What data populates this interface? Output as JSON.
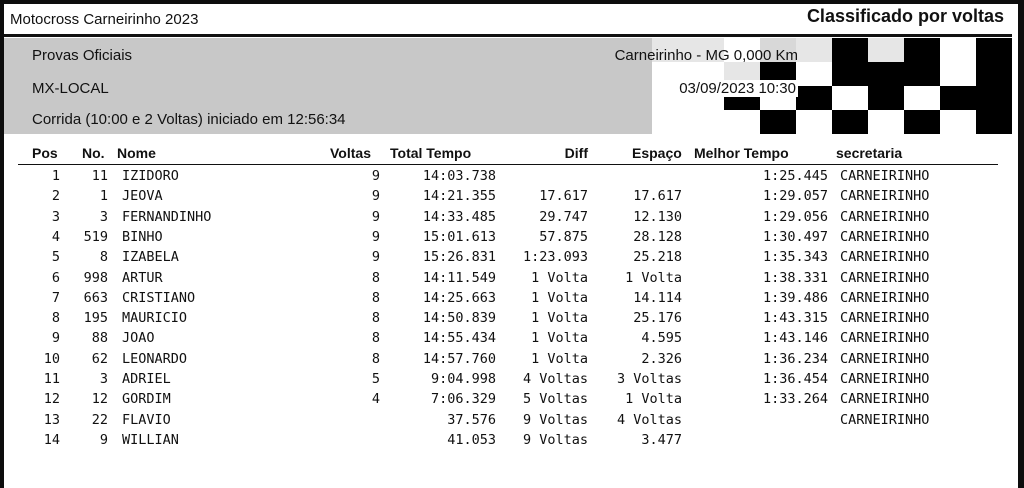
{
  "header": {
    "event_title": "Motocross Carneirinho 2023",
    "report_title": "Classificado por voltas"
  },
  "info": {
    "category": "Provas Oficiais",
    "class": "MX-LOCAL",
    "race": "Corrida (10:00 e 2 Voltas) iniciado em 12:56:34",
    "location": "Carneirinho - MG 0,000 Km",
    "datetime": "03/09/2023 10:30"
  },
  "table": {
    "columns": {
      "pos": "Pos",
      "no": "No.",
      "name": "Nome",
      "laps": "Voltas",
      "total": "Total Tempo",
      "diff": "Diff",
      "gap": "Espaço",
      "best": "Melhor Tempo",
      "team": "secretaria"
    },
    "rows": [
      {
        "pos": "1",
        "no": "11",
        "name": "IZIDORO",
        "laps": "9",
        "total": "14:03.738",
        "diff": "",
        "gap": "",
        "best": "1:25.445",
        "team": "CARNEIRINHO"
      },
      {
        "pos": "2",
        "no": "1",
        "name": "JEOVA",
        "laps": "9",
        "total": "14:21.355",
        "diff": "17.617",
        "gap": "17.617",
        "best": "1:29.057",
        "team": "CARNEIRINHO"
      },
      {
        "pos": "3",
        "no": "3",
        "name": "FERNANDINHO",
        "laps": "9",
        "total": "14:33.485",
        "diff": "29.747",
        "gap": "12.130",
        "best": "1:29.056",
        "team": "CARNEIRINHO"
      },
      {
        "pos": "4",
        "no": "519",
        "name": "BINHO",
        "laps": "9",
        "total": "15:01.613",
        "diff": "57.875",
        "gap": "28.128",
        "best": "1:30.497",
        "team": "CARNEIRINHO"
      },
      {
        "pos": "5",
        "no": "8",
        "name": "IZABELA",
        "laps": "9",
        "total": "15:26.831",
        "diff": "1:23.093",
        "gap": "25.218",
        "best": "1:35.343",
        "team": "CARNEIRINHO"
      },
      {
        "pos": "6",
        "no": "998",
        "name": "ARTUR",
        "laps": "8",
        "total": "14:11.549",
        "diff": "1 Volta",
        "gap": "1 Volta",
        "best": "1:38.331",
        "team": "CARNEIRINHO"
      },
      {
        "pos": "7",
        "no": "663",
        "name": "CRISTIANO",
        "laps": "8",
        "total": "14:25.663",
        "diff": "1 Volta",
        "gap": "14.114",
        "best": "1:39.486",
        "team": "CARNEIRINHO"
      },
      {
        "pos": "8",
        "no": "195",
        "name": "MAURICIO",
        "laps": "8",
        "total": "14:50.839",
        "diff": "1 Volta",
        "gap": "25.176",
        "best": "1:43.315",
        "team": "CARNEIRINHO"
      },
      {
        "pos": "9",
        "no": "88",
        "name": "JOAO",
        "laps": "8",
        "total": "14:55.434",
        "diff": "1 Volta",
        "gap": "4.595",
        "best": "1:43.146",
        "team": "CARNEIRINHO"
      },
      {
        "pos": "10",
        "no": "62",
        "name": "LEONARDO",
        "laps": "8",
        "total": "14:57.760",
        "diff": "1 Volta",
        "gap": "2.326",
        "best": "1:36.234",
        "team": "CARNEIRINHO"
      },
      {
        "pos": "11",
        "no": "3",
        "name": "ADRIEL",
        "laps": "5",
        "total": "9:04.998",
        "diff": "4 Voltas",
        "gap": "3 Voltas",
        "best": "1:36.454",
        "team": "CARNEIRINHO"
      },
      {
        "pos": "12",
        "no": "12",
        "name": "GORDIM",
        "laps": "4",
        "total": "7:06.329",
        "diff": "5 Voltas",
        "gap": "1 Volta",
        "best": "1:33.264",
        "team": "CARNEIRINHO"
      },
      {
        "pos": "13",
        "no": "22",
        "name": "FLAVIO",
        "laps": "",
        "total": "37.576",
        "diff": "9 Voltas",
        "gap": "4 Voltas",
        "best": "",
        "team": "CARNEIRINHO"
      },
      {
        "pos": "14",
        "no": "9",
        "name": "WILLIAN",
        "laps": "",
        "total": "41.053",
        "diff": "9 Voltas",
        "gap": "3.477",
        "best": "",
        "team": ""
      }
    ]
  },
  "colors": {
    "panel": "#c8c8c8",
    "ink": "#111111",
    "paper": "#ffffff"
  }
}
